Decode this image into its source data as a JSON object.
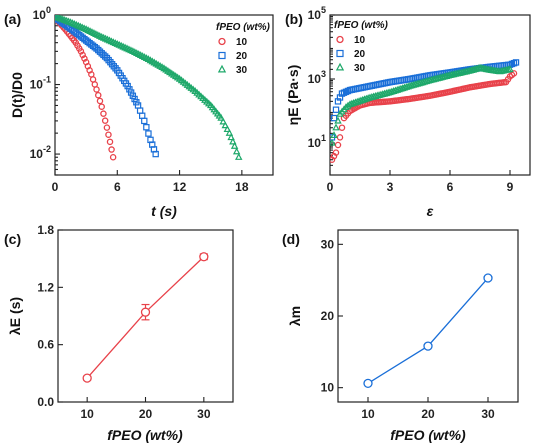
{
  "chart_data": [
    {
      "id": "a",
      "panel_label": "(a)",
      "type": "scatter",
      "title": "",
      "xlabel": "t (s)",
      "ylabel": "D(t)/D0",
      "xlim": [
        0,
        21
      ],
      "ylim": [
        0.005,
        1
      ],
      "yscale": "log",
      "grid": false,
      "legend_placement": "top-right",
      "legend_title": "fPEO (wt%)",
      "x_ticks": [
        "0",
        "6",
        "12",
        "18"
      ],
      "x_tick_values": [
        0,
        6,
        12,
        18
      ],
      "y_ticks": [
        "10^0",
        "10^-1",
        "10^-2"
      ],
      "y_tick_values": [
        1,
        0.1,
        0.01
      ],
      "series": [
        {
          "name": "10",
          "color": "#e8424a",
          "marker": "circle",
          "x": [
            0.0,
            0.5,
            1.0,
            1.5,
            2.0,
            2.5,
            3.0,
            3.5,
            4.0,
            4.5,
            5.0,
            5.3,
            5.6
          ],
          "y": [
            0.9,
            0.75,
            0.62,
            0.5,
            0.4,
            0.3,
            0.21,
            0.14,
            0.085,
            0.048,
            0.024,
            0.015,
            0.009
          ]
        },
        {
          "name": "20",
          "color": "#1a6fd8",
          "marker": "square",
          "x": [
            0.0,
            1.0,
            2.0,
            3.0,
            4.0,
            5.0,
            6.0,
            7.0,
            8.0,
            8.6,
            9.2,
            9.7
          ],
          "y": [
            0.92,
            0.72,
            0.56,
            0.43,
            0.33,
            0.24,
            0.16,
            0.095,
            0.05,
            0.03,
            0.016,
            0.01
          ]
        },
        {
          "name": "30",
          "color": "#1ea86a",
          "marker": "triangle",
          "x": [
            0.0,
            1.5,
            3.0,
            4.5,
            6.0,
            7.5,
            9.0,
            10.5,
            12.0,
            13.5,
            15.0,
            16.0,
            16.8,
            17.3,
            17.7
          ],
          "y": [
            0.95,
            0.78,
            0.62,
            0.48,
            0.38,
            0.3,
            0.23,
            0.17,
            0.12,
            0.08,
            0.05,
            0.033,
            0.02,
            0.013,
            0.009
          ]
        }
      ]
    },
    {
      "id": "b",
      "panel_label": "(b)",
      "type": "scatter",
      "title": "",
      "xlabel": "ε",
      "ylabel": "ηE (Pa·s)",
      "xlim": [
        0,
        10
      ],
      "ylim": [
        1,
        100000
      ],
      "yscale": "log",
      "grid": false,
      "legend_placement": "top-left",
      "legend_title": "fPEO (wt%)",
      "x_ticks": [
        "0",
        "3",
        "6",
        "9"
      ],
      "x_tick_values": [
        0,
        3,
        6,
        9
      ],
      "y_ticks": [
        "10^1",
        "10^3",
        "10^5"
      ],
      "y_tick_values": [
        10,
        1000,
        100000
      ],
      "series": [
        {
          "name": "10",
          "color": "#e8424a",
          "marker": "circle",
          "x": [
            0.1,
            0.3,
            0.5,
            0.7,
            1.0,
            1.5,
            2.0,
            3.0,
            4.0,
            5.0,
            6.0,
            7.0,
            8.0,
            8.8,
            9.0,
            9.2
          ],
          "y": [
            3,
            5,
            15,
            60,
            100,
            150,
            180,
            200,
            240,
            300,
            400,
            550,
            700,
            800,
            1200,
            1500
          ]
        },
        {
          "name": "20",
          "color": "#1a6fd8",
          "marker": "square",
          "x": [
            0.1,
            0.2,
            0.4,
            0.6,
            1.0,
            2.0,
            3.0,
            4.0,
            5.0,
            6.0,
            7.0,
            8.0,
            9.0,
            9.3
          ],
          "y": [
            15,
            60,
            200,
            350,
            450,
            600,
            800,
            1000,
            1300,
            1600,
            2000,
            2400,
            2800,
            3300
          ]
        },
        {
          "name": "30",
          "color": "#1ea86a",
          "marker": "triangle",
          "x": [
            0.1,
            0.3,
            0.5,
            0.8,
            1.0,
            2.0,
            3.0,
            4.0,
            5.0,
            6.0,
            7.0,
            7.5,
            8.0,
            8.5,
            9.0
          ],
          "y": [
            10,
            30,
            80,
            130,
            160,
            260,
            380,
            600,
            900,
            1300,
            1800,
            2200,
            1900,
            1700,
            2000
          ]
        }
      ]
    },
    {
      "id": "c",
      "panel_label": "(c)",
      "type": "line",
      "title": "",
      "xlabel": "fPEO (wt%)",
      "ylabel": "λE (s)",
      "xlim": [
        5,
        35
      ],
      "ylim": [
        0,
        1.8
      ],
      "grid": false,
      "x_ticks": [
        "10",
        "20",
        "30"
      ],
      "x_tick_values": [
        10,
        20,
        30
      ],
      "y_ticks": [
        "0.0",
        "0.6",
        "1.2",
        "1.8"
      ],
      "y_tick_values": [
        0,
        0.6,
        1.2,
        1.8
      ],
      "series": [
        {
          "color": "#e8424a",
          "marker": "open-circle",
          "x": [
            10,
            20,
            30
          ],
          "y": [
            0.25,
            0.94,
            1.52
          ],
          "error": [
            0.02,
            0.08,
            0.03
          ]
        }
      ]
    },
    {
      "id": "d",
      "panel_label": "(d)",
      "type": "line",
      "title": "",
      "xlabel": "fPEO (wt%)",
      "ylabel": "λm",
      "xlim": [
        5,
        35
      ],
      "ylim": [
        8,
        32
      ],
      "grid": false,
      "x_ticks": [
        "10",
        "20",
        "30"
      ],
      "x_tick_values": [
        10,
        20,
        30
      ],
      "y_ticks": [
        "10",
        "20",
        "30"
      ],
      "y_tick_values": [
        10,
        20,
        30
      ],
      "series": [
        {
          "color": "#1a6fd8",
          "marker": "open-circle",
          "x": [
            10,
            20,
            30
          ],
          "y": [
            10.6,
            15.8,
            25.3
          ]
        }
      ]
    }
  ]
}
